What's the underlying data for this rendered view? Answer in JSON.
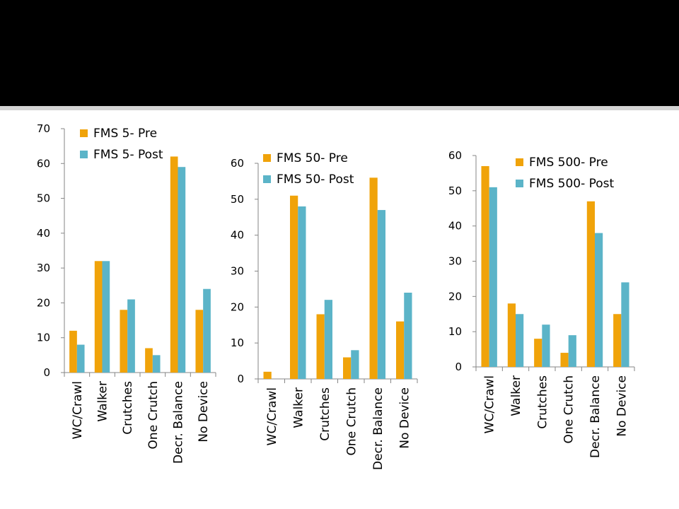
{
  "slide": {
    "title_band_color": "#000000",
    "rule_color": "#d4d4d4"
  },
  "colors": {
    "pre": "#F0A30A",
    "post": "#5BB4C8",
    "axis": "#868686"
  },
  "chart_data": [
    {
      "type": "bar",
      "categories": [
        "WC/Crawl",
        "Walker",
        "Crutches",
        "One Crutch",
        "Decr. Balance",
        "No Device"
      ],
      "series": [
        {
          "name": "FMS 5- Pre",
          "values": [
            12,
            32,
            18,
            7,
            62,
            18
          ]
        },
        {
          "name": "FMS 5- Post",
          "values": [
            8,
            32,
            21,
            5,
            59,
            24
          ]
        }
      ],
      "ylim": [
        0,
        70
      ],
      "yticks": [
        0,
        10,
        20,
        30,
        40,
        50,
        60,
        70
      ],
      "legend": "top-left",
      "grid": false
    },
    {
      "type": "bar",
      "categories": [
        "WC/Crawl",
        "Walker",
        "Crutches",
        "One Crutch",
        "Decr. Balance",
        "No Device"
      ],
      "series": [
        {
          "name": "FMS 50- Pre",
          "values": [
            2,
            51,
            18,
            6,
            56,
            16
          ]
        },
        {
          "name": "FMS 50- Post",
          "values": [
            0,
            48,
            22,
            8,
            47,
            24
          ]
        }
      ],
      "ylim": [
        0,
        60
      ],
      "yticks": [
        0,
        10,
        20,
        30,
        40,
        50,
        60
      ],
      "legend": "top-left",
      "grid": false
    },
    {
      "type": "bar",
      "categories": [
        "WC/Crawl",
        "Walker",
        "Crutches",
        "One Crutch",
        "Decr. Balance",
        "No Device"
      ],
      "series": [
        {
          "name": "FMS 500- Pre",
          "values": [
            57,
            18,
            8,
            4,
            47,
            15
          ]
        },
        {
          "name": "FMS 500- Post",
          "values": [
            51,
            15,
            12,
            9,
            38,
            24
          ]
        }
      ],
      "ylim": [
        0,
        60
      ],
      "yticks": [
        0,
        10,
        20,
        30,
        40,
        50,
        60
      ],
      "legend": "top-right",
      "grid": false
    }
  ]
}
